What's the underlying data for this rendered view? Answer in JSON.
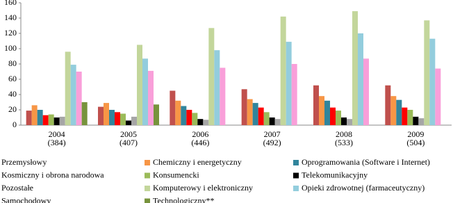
{
  "chart_data": {
    "type": "bar",
    "categories": [
      [
        "2004",
        "(384)"
      ],
      [
        "2005",
        "(407)"
      ],
      [
        "2006",
        "(446)"
      ],
      [
        "2007",
        "(492)"
      ],
      [
        "2008",
        "(533)"
      ],
      [
        "2009",
        "(504)"
      ]
    ],
    "ylim": [
      0,
      160
    ],
    "yticks": [
      0,
      20,
      40,
      60,
      80,
      100,
      120,
      140,
      160
    ],
    "grid": false,
    "series": [
      {
        "name": "Przemysłowy",
        "color": "#c0504d",
        "values": [
          19,
          24,
          45,
          47,
          52,
          52
        ]
      },
      {
        "name": "Chemiczny i energetyczny",
        "color": "#f79646",
        "values": [
          26,
          29,
          32,
          34,
          38,
          38
        ]
      },
      {
        "name": "Oprogramowania (Software i Internet)",
        "color": "#31859c",
        "values": [
          20,
          20,
          25,
          29,
          32,
          33
        ]
      },
      {
        "name": "Kosmiczny i obrona narodowa",
        "color": "#ff0000",
        "values": [
          13,
          17,
          20,
          23,
          23,
          23
        ]
      },
      {
        "name": "Konsumencki",
        "color": "#9bbb59",
        "values": [
          14,
          15,
          16,
          17,
          19,
          20
        ]
      },
      {
        "name": "Telekomunikacyjny",
        "color": "#000000",
        "values": [
          10,
          6,
          8,
          10,
          10,
          11
        ]
      },
      {
        "name": "Pozostałe",
        "color": "#a6a6a6",
        "values": [
          11,
          11,
          7,
          8,
          8,
          9
        ]
      },
      {
        "name": "Komputerowy i elektroniczny",
        "color": "#c3d69b",
        "values": [
          96,
          105,
          127,
          142,
          149,
          137
        ]
      },
      {
        "name": "Opieki zdrowotnej (farmaceutyczny)",
        "color": "#93cddd",
        "values": [
          79,
          87,
          98,
          109,
          120,
          113
        ]
      },
      {
        "name": "Samochodowy",
        "color": "#f99fd9",
        "values": [
          70,
          71,
          75,
          80,
          87,
          74
        ]
      },
      {
        "name": "Technologiczny**",
        "color": "#77933c",
        "values": [
          30,
          27,
          null,
          null,
          null,
          null
        ]
      }
    ]
  }
}
